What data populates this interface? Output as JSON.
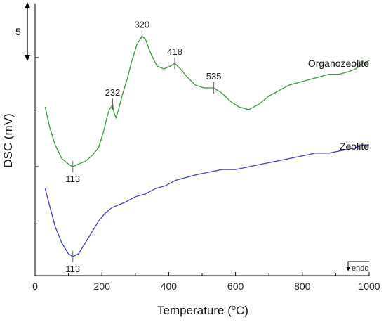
{
  "chart_data": {
    "type": "line",
    "title": "",
    "xlabel": "Temperature (",
    "xlabel_sup": "o",
    "xlabel_tail": "C)",
    "ylabel": "DSC (mV)",
    "xlim": [
      0,
      1000
    ],
    "x_ticks": [
      0,
      200,
      400,
      600,
      800,
      1000
    ],
    "x_tick_labels": [
      "0",
      "200",
      "400",
      "600",
      "800",
      "1000"
    ],
    "y_scale_bar_label": "5",
    "endo_label": "endo",
    "grid": false,
    "series": [
      {
        "name": "Organozeolite",
        "color": "#3a9a3a",
        "x": [
          30,
          45,
          60,
          80,
          100,
          113,
          130,
          150,
          170,
          190,
          205,
          215,
          222,
          228,
          232,
          236,
          242,
          250,
          260,
          275,
          290,
          305,
          320,
          330,
          345,
          365,
          385,
          405,
          418,
          435,
          455,
          480,
          505,
          535,
          560,
          585,
          610,
          640,
          670,
          700,
          730,
          760,
          790,
          820,
          850,
          880,
          910,
          940,
          960,
          980,
          1000
        ],
        "y": [
          0.62,
          0.54,
          0.48,
          0.43,
          0.41,
          0.4,
          0.41,
          0.42,
          0.44,
          0.47,
          0.53,
          0.58,
          0.61,
          0.62,
          0.63,
          0.6,
          0.58,
          0.61,
          0.66,
          0.72,
          0.79,
          0.85,
          0.88,
          0.87,
          0.82,
          0.77,
          0.76,
          0.77,
          0.78,
          0.76,
          0.73,
          0.7,
          0.69,
          0.69,
          0.67,
          0.64,
          0.62,
          0.61,
          0.63,
          0.66,
          0.68,
          0.7,
          0.71,
          0.72,
          0.73,
          0.74,
          0.74,
          0.75,
          0.76,
          0.78,
          0.79
        ]
      },
      {
        "name": "Zeolite",
        "color": "#3f3fd4",
        "x": [
          30,
          45,
          60,
          80,
          100,
          113,
          130,
          150,
          170,
          190,
          210,
          230,
          250,
          270,
          300,
          330,
          360,
          390,
          420,
          450,
          480,
          520,
          560,
          600,
          640,
          680,
          720,
          760,
          800,
          840,
          880,
          920,
          960,
          980,
          1000
        ],
        "y": [
          0.32,
          0.25,
          0.18,
          0.12,
          0.08,
          0.07,
          0.08,
          0.12,
          0.16,
          0.2,
          0.23,
          0.25,
          0.26,
          0.27,
          0.29,
          0.3,
          0.32,
          0.33,
          0.35,
          0.36,
          0.37,
          0.38,
          0.39,
          0.39,
          0.4,
          0.41,
          0.42,
          0.43,
          0.44,
          0.45,
          0.45,
          0.46,
          0.47,
          0.48,
          0.48
        ]
      }
    ],
    "annotations": [
      {
        "series": 0,
        "x": 113,
        "text": "113",
        "position": "below"
      },
      {
        "series": 0,
        "x": 232,
        "text": "232",
        "position": "above"
      },
      {
        "series": 0,
        "x": 320,
        "text": "320",
        "position": "above"
      },
      {
        "series": 0,
        "x": 418,
        "text": "418",
        "position": "above"
      },
      {
        "series": 0,
        "x": 535,
        "text": "535",
        "position": "above"
      },
      {
        "series": 1,
        "x": 113,
        "text": "113",
        "position": "below"
      }
    ]
  }
}
